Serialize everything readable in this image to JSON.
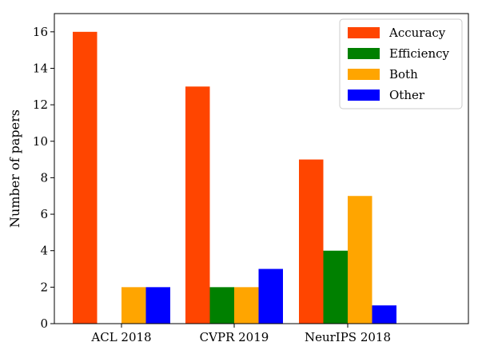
{
  "chart_data": {
    "type": "bar",
    "title": "",
    "xlabel": "",
    "ylabel": "Number of papers",
    "categories": [
      "ACL 2018",
      "CVPR 2019",
      "NeurIPS 2018"
    ],
    "series": [
      {
        "name": "Accuracy",
        "values": [
          16,
          13,
          9
        ],
        "color": "#ff4500"
      },
      {
        "name": "Efficiency",
        "values": [
          0,
          2,
          4
        ],
        "color": "#008000"
      },
      {
        "name": "Both",
        "values": [
          2,
          2,
          7
        ],
        "color": "#ffa500"
      },
      {
        "name": "Other",
        "values": [
          2,
          3,
          1
        ],
        "color": "#0000ff"
      }
    ],
    "ylim": [
      0,
      17
    ],
    "yticks": [
      0,
      2,
      4,
      6,
      8,
      10,
      12,
      14,
      16
    ],
    "grid": false,
    "legend_position": "top-right"
  }
}
